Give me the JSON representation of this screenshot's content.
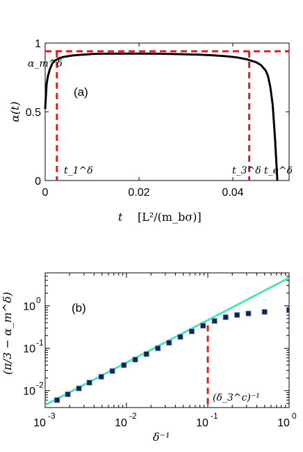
{
  "chart_data": [
    {
      "type": "line",
      "panel_label": "(a)",
      "xlabel": "t",
      "xunit": "[L²/(m_bσ)]",
      "ylabel": "α(t)",
      "xlim": [
        0,
        0.052
      ],
      "ylim": [
        0,
        1
      ],
      "xticks": [
        0,
        0.02,
        0.04
      ],
      "xtick_labels": [
        "0",
        "0.02",
        "0.04"
      ],
      "yticks": [
        0,
        0.5,
        1
      ],
      "ytick_labels": [
        "0",
        "0.5",
        "1"
      ],
      "series": [
        {
          "color": "#000000",
          "style": "solid",
          "x": [
            0,
            0.0003,
            0.0006,
            0.001,
            0.0015,
            0.002,
            0.003,
            0.004,
            0.006,
            0.008,
            0.01,
            0.012,
            0.015,
            0.018,
            0.021,
            0.024,
            0.027,
            0.03,
            0.033,
            0.036,
            0.039,
            0.041,
            0.043,
            0.045,
            0.046,
            0.047,
            0.0475,
            0.048,
            0.0485,
            0.049,
            0.0495
          ],
          "y": [
            0.52,
            0.7,
            0.76,
            0.81,
            0.85,
            0.87,
            0.89,
            0.9,
            0.91,
            0.915,
            0.92,
            0.922,
            0.923,
            0.923,
            0.923,
            0.922,
            0.92,
            0.918,
            0.915,
            0.91,
            0.903,
            0.895,
            0.882,
            0.86,
            0.84,
            0.8,
            0.76,
            0.68,
            0.55,
            0.3,
            0.0
          ]
        }
      ],
      "hline": {
        "y": 0.94,
        "color": "#e4191c",
        "label": "α_m^δ"
      },
      "vlines": [
        {
          "x": 0.0025,
          "color": "#e4191c",
          "label": "t_1^δ"
        },
        {
          "x": 0.0435,
          "color": "#e4191c",
          "label": "t_3^δ"
        }
      ],
      "point_labels": [
        {
          "x": 0.0495,
          "label": "t_e^δ"
        }
      ]
    },
    {
      "type": "scatter",
      "panel_label": "(b)",
      "xlabel": "δ⁻¹",
      "ylabel": "(π/3 − α_m^δ)",
      "xscale": "log",
      "yscale": "log",
      "xlim": [
        0.001,
        1
      ],
      "ylim": [
        0.004,
        6
      ],
      "xticks": [
        0.001,
        0.01,
        0.1,
        1
      ],
      "xtick_labels": [
        "10",
        "10",
        "10",
        "10"
      ],
      "xtick_exponents": [
        "-3",
        "-2",
        "-1",
        "0"
      ],
      "yticks": [
        0.01,
        0.1,
        1
      ],
      "ytick_labels": [
        "10",
        "10",
        "10"
      ],
      "ytick_exponents": [
        "-2",
        "-1",
        "0"
      ],
      "series": [
        {
          "color": "#1a2340",
          "marker": "square",
          "x": [
            0.0014,
            0.0019,
            0.0026,
            0.0035,
            0.0049,
            0.0067,
            0.0093,
            0.0128,
            0.0176,
            0.0243,
            0.0334,
            0.046,
            0.0635,
            0.0875,
            0.121,
            0.166,
            0.229,
            0.316,
            0.5,
            1.0
          ],
          "y": [
            0.006,
            0.0082,
            0.0113,
            0.0155,
            0.0213,
            0.029,
            0.04,
            0.054,
            0.073,
            0.1,
            0.135,
            0.185,
            0.25,
            0.34,
            0.44,
            0.54,
            0.61,
            0.66,
            0.72,
            0.8
          ]
        },
        {
          "color": "#48e8b0",
          "style": "solid",
          "x": [
            0.001,
            1
          ],
          "y": [
            0.0046,
            4.6
          ]
        }
      ],
      "vline": {
        "x": 0.1,
        "y_top": 0.35,
        "color": "#e4191c",
        "label": "(δ_3^c)⁻¹"
      }
    }
  ]
}
